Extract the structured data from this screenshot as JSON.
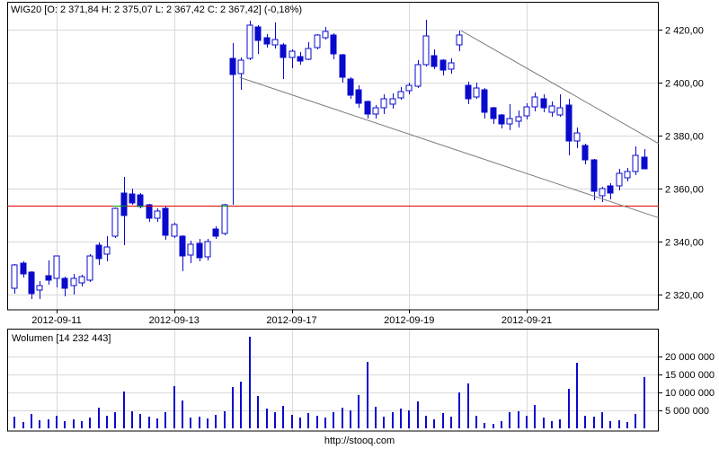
{
  "page": {
    "footer": "http://stooq.com"
  },
  "chart_data": {
    "type": "candlestick",
    "instrument": "WIG20",
    "title": "WIG20 [O: 2 371,84  H: 2 375,07  L: 2 367,42  C: 2 367,42] (-0,18%)",
    "last_quote": {
      "open": "2 371,84",
      "high": "2 375,07",
      "low": "2 367,42",
      "close": "2 367,42",
      "change_pct": "-0,18%"
    },
    "price_axis": {
      "side": "right",
      "ticks": [
        {
          "label": "2 420,00",
          "value": 2420
        },
        {
          "label": "2 400,00",
          "value": 2400
        },
        {
          "label": "2 380,00",
          "value": 2380
        },
        {
          "label": "2 360,00",
          "value": 2360
        },
        {
          "label": "2 340,00",
          "value": 2340
        },
        {
          "label": "2 320,00",
          "value": 2320
        }
      ]
    },
    "x_axis": {
      "ticks": [
        {
          "label": "2012-09-11",
          "index": 5
        },
        {
          "label": "2012-09-13",
          "index": 19
        },
        {
          "label": "2012-09-17",
          "index": 33
        },
        {
          "label": "2012-09-19",
          "index": 47
        },
        {
          "label": "2012-09-21",
          "index": 61
        }
      ]
    },
    "reference_line": {
      "price": 2353.7,
      "color": "#e00000",
      "overlap_color": "#00a000",
      "green_segments_index": [
        [
          11.7,
          13.35
        ],
        [
          14.6,
          15.45
        ],
        [
          24.6,
          25.45
        ]
      ]
    },
    "trendlines": [
      {
        "from_index": 53.2,
        "from_price": 2419.7,
        "to_index": 76.7,
        "to_price": 2377.1
      },
      {
        "from_index": 26.8,
        "from_price": 2402.1,
        "to_index": 76.7,
        "to_price": 2349.1
      }
    ],
    "candles": [
      [
        2322.5,
        2331.5,
        2320.4,
        2331.3,
        3200000
      ],
      [
        2332.0,
        2332.5,
        2326.5,
        2327.9,
        1800000
      ],
      [
        2328.5,
        2329.0,
        2318.4,
        2320.4,
        4100000
      ],
      [
        2321.8,
        2325.2,
        2318.4,
        2323.5,
        2200000
      ],
      [
        2327.2,
        2333.0,
        2323.8,
        2325.5,
        2600000
      ],
      [
        2326.2,
        2334.7,
        2322.8,
        2334.7,
        3400000
      ],
      [
        2326.1,
        2327.0,
        2319.4,
        2322.5,
        2100000
      ],
      [
        2323.5,
        2327.9,
        2320.1,
        2326.2,
        2400000
      ],
      [
        2324.5,
        2327.5,
        2323.0,
        2326.9,
        1900000
      ],
      [
        2325.6,
        2335.2,
        2325.0,
        2334.7,
        3100000
      ],
      [
        2338.6,
        2339.7,
        2331.2,
        2333.5,
        5800000
      ],
      [
        2335.3,
        2342.0,
        2332.8,
        2338.1,
        3600000
      ],
      [
        2342.0,
        2353.0,
        2341.5,
        2352.7,
        4400000
      ],
      [
        2358.4,
        2364.6,
        2338.6,
        2349.9,
        10200000
      ],
      [
        2358.0,
        2360.1,
        2353.9,
        2354.7,
        4800000
      ],
      [
        2357.8,
        2358.4,
        2352.5,
        2353.3,
        3900000
      ],
      [
        2353.9,
        2354.5,
        2347.6,
        2348.8,
        3200000
      ],
      [
        2348.8,
        2352.7,
        2347.6,
        2351.6,
        2700000
      ],
      [
        2352.7,
        2353.3,
        2340.9,
        2342.6,
        4600000
      ],
      [
        2342.0,
        2347.2,
        2341.4,
        2346.6,
        11800000
      ],
      [
        2342.0,
        2342.6,
        2329.0,
        2334.7,
        7700000
      ],
      [
        2335.0,
        2340.5,
        2332.0,
        2339.0,
        2900000
      ],
      [
        2339.5,
        2341.0,
        2332.5,
        2334.0,
        3300000
      ],
      [
        2334.5,
        2341.0,
        2333.0,
        2340.0,
        2800000
      ],
      [
        2344.9,
        2346.0,
        2341.0,
        2342.0,
        3700000
      ],
      [
        2343.0,
        2354.2,
        2342.5,
        2353.9,
        4800000
      ],
      [
        2409.3,
        2414.9,
        2354.0,
        2403.1,
        11600000
      ],
      [
        2403.6,
        2409.5,
        2397.4,
        2408.7,
        12900000
      ],
      [
        2409.3,
        2423.5,
        2408.5,
        2421.7,
        25400000
      ],
      [
        2421.1,
        2421.8,
        2411.0,
        2416.0,
        8900000
      ],
      [
        2417.0,
        2418.4,
        2413.3,
        2414.7,
        5400000
      ],
      [
        2414.2,
        2422.7,
        2413.0,
        2416.5,
        4600000
      ],
      [
        2414.2,
        2414.9,
        2401.6,
        2409.6,
        6200000
      ],
      [
        2409.6,
        2412.5,
        2405.5,
        2411.9,
        3800000
      ],
      [
        2410.1,
        2411.6,
        2406.9,
        2408.4,
        3100000
      ],
      [
        2409.0,
        2415.3,
        2408.5,
        2413.0,
        4200000
      ],
      [
        2413.3,
        2418.5,
        2412.5,
        2417.9,
        3500000
      ],
      [
        2417.0,
        2421.0,
        2416.3,
        2419.3,
        2900000
      ],
      [
        2418.0,
        2418.6,
        2409.0,
        2411.0,
        4400000
      ],
      [
        2410.5,
        2411.0,
        2400.0,
        2402.0,
        5700000
      ],
      [
        2401.5,
        2402.0,
        2394.0,
        2395.5,
        4900000
      ],
      [
        2397.5,
        2399.2,
        2390.7,
        2392.4,
        9300000
      ],
      [
        2392.9,
        2393.4,
        2386.6,
        2388.3,
        18500000
      ],
      [
        2388.3,
        2391.7,
        2386.6,
        2390.6,
        6100000
      ],
      [
        2390.6,
        2395.8,
        2388.3,
        2394.0,
        3200000
      ],
      [
        2391.9,
        2396.2,
        2390.2,
        2394.1,
        4500000
      ],
      [
        2394.3,
        2398.3,
        2393.6,
        2396.6,
        5500000
      ],
      [
        2396.9,
        2400.0,
        2395.7,
        2399.2,
        5000000
      ],
      [
        2398.9,
        2408.6,
        2398.2,
        2406.9,
        7600000
      ],
      [
        2406.9,
        2423.8,
        2406.2,
        2417.8,
        3600000
      ],
      [
        2410.2,
        2412.5,
        2405.2,
        2406.2,
        2400000
      ],
      [
        2408.5,
        2409.0,
        2402.8,
        2405.0,
        4300000
      ],
      [
        2405.3,
        2409.3,
        2403.5,
        2407.6,
        3300000
      ],
      [
        2414.5,
        2419.8,
        2411.9,
        2417.9,
        10000000
      ],
      [
        2399.1,
        2400.3,
        2391.9,
        2394.1,
        12500000
      ],
      [
        2394.6,
        2400.0,
        2393.9,
        2398.0,
        3500000
      ],
      [
        2397.4,
        2398.0,
        2386.7,
        2388.9,
        1500000
      ],
      [
        2390.6,
        2391.0,
        2384.4,
        2386.7,
        1200000
      ],
      [
        2387.8,
        2388.3,
        2382.7,
        2384.4,
        2000000
      ],
      [
        2384.4,
        2391.9,
        2382.1,
        2386.4,
        4500000
      ],
      [
        2385.4,
        2389.5,
        2383.0,
        2387.1,
        4800000
      ],
      [
        2387.4,
        2392.2,
        2386.3,
        2391.0,
        3600000
      ],
      [
        2391.0,
        2396.3,
        2389.1,
        2394.6,
        6500000
      ],
      [
        2393.9,
        2395.6,
        2388.9,
        2390.6,
        3000000
      ],
      [
        2388.9,
        2392.9,
        2387.2,
        2391.2,
        2000000
      ],
      [
        2387.8,
        2395.7,
        2387.3,
        2390.6,
        2500000
      ],
      [
        2391.7,
        2394.0,
        2372.5,
        2378.1,
        11000000
      ],
      [
        2378.1,
        2383.2,
        2375.3,
        2381.0,
        18200000
      ],
      [
        2376.4,
        2377.0,
        2369.2,
        2370.8,
        3500000
      ],
      [
        2370.8,
        2371.3,
        2355.6,
        2359.0,
        3200000
      ],
      [
        2357.3,
        2360.7,
        2355.0,
        2360.1,
        4500000
      ],
      [
        2361.2,
        2362.3,
        2356.1,
        2358.4,
        2000000
      ],
      [
        2361.2,
        2367.5,
        2359.5,
        2365.8,
        2300000
      ],
      [
        2364.1,
        2368.0,
        2362.9,
        2366.4,
        1800000
      ],
      [
        2366.4,
        2375.9,
        2365.3,
        2372.5,
        3900000
      ],
      [
        2371.84,
        2375.07,
        2367.42,
        2367.42,
        14232443
      ]
    ],
    "volume": {
      "label": "Wolumen [14 232 443]",
      "last_value": 14232443,
      "axis_ticks": [
        {
          "label": "20 000 000",
          "value": 20000000
        },
        {
          "label": "15 000 000",
          "value": 15000000
        },
        {
          "label": "10 000 000",
          "value": 10000000
        },
        {
          "label": "5 000 000",
          "value": 5000000
        }
      ]
    },
    "colors": {
      "up_fill": "#ffffff",
      "down_fill": "#0a0acd",
      "outline": "#0a0acd",
      "grid": "#d9d9d9",
      "border": "#000000",
      "trendline": "#7d7d7d",
      "reference": "#e00000",
      "reference_overlap": "#00a000"
    }
  }
}
